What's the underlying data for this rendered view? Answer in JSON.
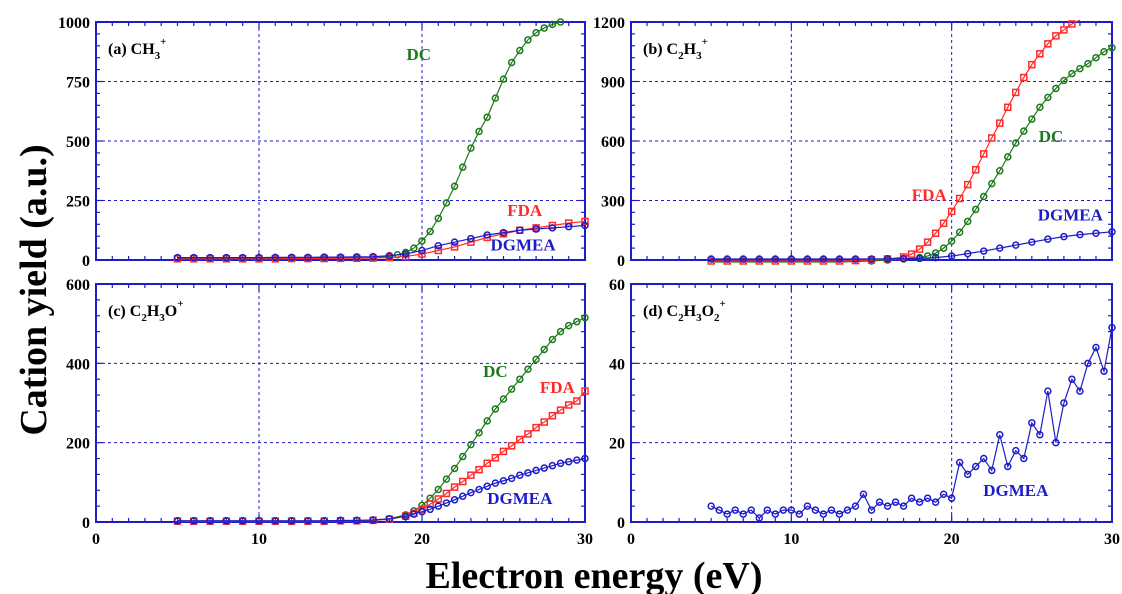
{
  "figure": {
    "ylabel": "Cation yield (a.u.)",
    "xlabel": "Electron energy (eV)"
  },
  "colors": {
    "DC": "#1a7a1a",
    "FDA": "#ff2a2a",
    "DGMEA": "#1c1cc8",
    "axis": "#1c1cc8",
    "grid": "#1c1cc8"
  },
  "chart_data": [
    {
      "type": "scatter",
      "panel_label": "(a) CH",
      "panel_sub": "3",
      "panel_sup": "+",
      "xlim": [
        0,
        30
      ],
      "ylim": [
        0,
        1000
      ],
      "xticks": [
        0,
        10,
        20,
        30
      ],
      "yticks": [
        0,
        250,
        500,
        750,
        1000
      ],
      "grid": true,
      "series": [
        {
          "name": "DC",
          "label_pos": [
            19.8,
            840
          ],
          "x": [
            5,
            6,
            7,
            8,
            9,
            10,
            11,
            12,
            13,
            14,
            15,
            16,
            17,
            18,
            18.5,
            19,
            19.5,
            20,
            20.5,
            21,
            21.5,
            22,
            22.5,
            23,
            23.5,
            24,
            24.5,
            25,
            25.5,
            26,
            26.5,
            27,
            27.5,
            28,
            28.5
          ],
          "y": [
            8,
            8,
            8,
            8,
            8,
            8,
            8,
            9,
            9,
            9,
            10,
            10,
            12,
            15,
            22,
            32,
            50,
            80,
            120,
            175,
            240,
            310,
            390,
            470,
            540,
            600,
            680,
            760,
            830,
            880,
            925,
            955,
            975,
            990,
            1000
          ]
        },
        {
          "name": "FDA",
          "label_pos": [
            26.3,
            185
          ],
          "x": [
            5,
            6,
            7,
            8,
            9,
            10,
            11,
            12,
            13,
            14,
            15,
            16,
            17,
            18,
            19,
            20,
            21,
            22,
            23,
            24,
            25,
            26,
            27,
            28,
            29,
            30
          ],
          "y": [
            5,
            5,
            5,
            5,
            5,
            5,
            5,
            6,
            6,
            6,
            7,
            7,
            8,
            10,
            15,
            25,
            40,
            55,
            75,
            95,
            110,
            125,
            135,
            145,
            155,
            162
          ]
        },
        {
          "name": "DGMEA",
          "label_pos": [
            26.2,
            40
          ],
          "x": [
            5,
            6,
            7,
            8,
            9,
            10,
            11,
            12,
            13,
            14,
            15,
            16,
            17,
            18,
            19,
            20,
            21,
            22,
            23,
            24,
            25,
            26,
            27,
            28,
            29,
            30
          ],
          "y": [
            10,
            10,
            10,
            10,
            10,
            10,
            11,
            11,
            11,
            12,
            12,
            13,
            14,
            18,
            25,
            40,
            60,
            75,
            90,
            105,
            115,
            125,
            130,
            135,
            140,
            145
          ]
        }
      ]
    },
    {
      "type": "scatter",
      "panel_label": "(b) C",
      "panel_sub": "2",
      "panel_mid": "H",
      "panel_sub2": "3",
      "panel_sup": "+",
      "xlim": [
        0,
        30
      ],
      "ylim": [
        0,
        1200
      ],
      "xticks": [
        0,
        10,
        20,
        30
      ],
      "yticks": [
        0,
        300,
        600,
        900,
        1200
      ],
      "grid": true,
      "series": [
        {
          "name": "DC",
          "label_pos": [
            26.2,
            595
          ],
          "x": [
            5,
            6,
            7,
            8,
            9,
            10,
            11,
            12,
            13,
            14,
            15,
            16,
            17,
            18,
            18.5,
            19,
            19.5,
            20,
            20.5,
            21,
            21.5,
            22,
            22.5,
            23,
            23.5,
            24,
            24.5,
            25,
            25.5,
            26,
            26.5,
            27,
            27.5,
            28,
            28.5,
            29,
            29.5,
            30
          ],
          "y": [
            -10,
            -10,
            -10,
            -10,
            -10,
            -10,
            -10,
            -10,
            -10,
            -8,
            -5,
            0,
            5,
            12,
            20,
            35,
            60,
            95,
            140,
            195,
            255,
            320,
            385,
            450,
            520,
            590,
            650,
            710,
            770,
            820,
            865,
            905,
            940,
            965,
            990,
            1020,
            1050,
            1070
          ]
        },
        {
          "name": "FDA",
          "label_pos": [
            18.6,
            300
          ],
          "x": [
            5,
            6,
            7,
            8,
            9,
            10,
            11,
            12,
            13,
            14,
            15,
            16,
            17,
            17.5,
            18,
            18.5,
            19,
            19.5,
            20,
            20.5,
            21,
            21.5,
            22,
            22.5,
            23,
            23.5,
            24,
            24.5,
            25,
            25.5,
            26,
            26.5,
            27,
            27.5,
            28
          ],
          "y": [
            -5,
            -5,
            -5,
            -5,
            -5,
            -5,
            -5,
            -5,
            -5,
            -3,
            0,
            5,
            15,
            30,
            55,
            90,
            135,
            185,
            245,
            310,
            380,
            455,
            535,
            615,
            690,
            770,
            845,
            920,
            985,
            1040,
            1090,
            1130,
            1160,
            1190,
            1210
          ]
        },
        {
          "name": "DGMEA",
          "label_pos": [
            27.4,
            200
          ],
          "x": [
            5,
            6,
            7,
            8,
            9,
            10,
            11,
            12,
            13,
            14,
            15,
            16,
            17,
            18,
            19,
            20,
            21,
            22,
            23,
            24,
            25,
            26,
            27,
            28,
            29,
            30
          ],
          "y": [
            5,
            5,
            5,
            5,
            5,
            5,
            5,
            5,
            5,
            5,
            5,
            6,
            7,
            8,
            12,
            20,
            32,
            45,
            60,
            75,
            90,
            105,
            118,
            128,
            135,
            142
          ]
        }
      ]
    },
    {
      "type": "scatter",
      "panel_label": "(c) C",
      "panel_sub": "2",
      "panel_mid": "H",
      "panel_sub2": "3",
      "panel_tail": "O",
      "panel_sup": "+",
      "xlim": [
        0,
        30
      ],
      "ylim": [
        0,
        600
      ],
      "xticks": [
        0,
        10,
        20,
        30
      ],
      "yticks": [
        0,
        200,
        400,
        600
      ],
      "grid": true,
      "series": [
        {
          "name": "DC",
          "label_pos": [
            24.5,
            365
          ],
          "x": [
            5,
            6,
            7,
            8,
            9,
            10,
            11,
            12,
            13,
            14,
            15,
            16,
            17,
            18,
            19,
            19.5,
            20,
            20.5,
            21,
            21.5,
            22,
            22.5,
            23,
            23.5,
            24,
            24.5,
            25,
            25.5,
            26,
            26.5,
            27,
            27.5,
            28,
            28.5,
            29,
            29.5,
            30
          ],
          "y": [
            3,
            3,
            3,
            3,
            3,
            3,
            3,
            3,
            3,
            3,
            4,
            4,
            5,
            8,
            18,
            28,
            42,
            60,
            82,
            108,
            135,
            165,
            195,
            225,
            255,
            285,
            310,
            335,
            360,
            385,
            410,
            435,
            460,
            480,
            495,
            505,
            515
          ]
        },
        {
          "name": "FDA",
          "label_pos": [
            28.3,
            325
          ],
          "x": [
            5,
            6,
            7,
            8,
            9,
            10,
            11,
            12,
            13,
            14,
            15,
            16,
            17,
            18,
            19,
            19.5,
            20,
            20.5,
            21,
            21.5,
            22,
            22.5,
            23,
            23.5,
            24,
            24.5,
            25,
            25.5,
            26,
            26.5,
            27,
            27.5,
            28,
            28.5,
            29,
            29.5,
            30
          ],
          "y": [
            2,
            2,
            2,
            2,
            2,
            2,
            2,
            2,
            2,
            2,
            3,
            3,
            4,
            7,
            15,
            22,
            32,
            45,
            58,
            72,
            88,
            102,
            118,
            132,
            148,
            162,
            178,
            192,
            208,
            222,
            238,
            252,
            268,
            282,
            295,
            305,
            330
          ]
        },
        {
          "name": "DGMEA",
          "label_pos": [
            26.0,
            45
          ],
          "x": [
            5,
            6,
            7,
            8,
            9,
            10,
            11,
            12,
            13,
            14,
            15,
            16,
            17,
            18,
            19,
            19.5,
            20,
            20.5,
            21,
            21.5,
            22,
            22.5,
            23,
            23.5,
            24,
            24.5,
            25,
            25.5,
            26,
            26.5,
            27,
            27.5,
            28,
            28.5,
            29,
            29.5,
            30
          ],
          "y": [
            3,
            3,
            3,
            3,
            3,
            3,
            3,
            3,
            3,
            3,
            4,
            4,
            5,
            8,
            14,
            20,
            26,
            32,
            40,
            48,
            56,
            65,
            74,
            82,
            90,
            98,
            104,
            110,
            118,
            124,
            130,
            136,
            142,
            148,
            152,
            156,
            160
          ]
        }
      ]
    },
    {
      "type": "line",
      "panel_label": "(d) C",
      "panel_sub": "2",
      "panel_mid": "H",
      "panel_sub2": "3",
      "panel_tail": "O",
      "panel_sub3": "2",
      "panel_sup": "+",
      "xlim": [
        0,
        30
      ],
      "ylim": [
        0,
        60
      ],
      "xticks": [
        0,
        10,
        20,
        30
      ],
      "yticks": [
        0,
        20,
        40,
        60
      ],
      "grid": true,
      "series": [
        {
          "name": "DGMEA",
          "label_pos": [
            24.0,
            6.5
          ],
          "x": [
            5,
            5.5,
            6,
            6.5,
            7,
            7.5,
            8,
            8.5,
            9,
            9.5,
            10,
            10.5,
            11,
            11.5,
            12,
            12.5,
            13,
            13.5,
            14,
            14.5,
            15,
            15.5,
            16,
            16.5,
            17,
            17.5,
            18,
            18.5,
            19,
            19.5,
            20,
            20.5,
            21,
            21.5,
            22,
            22.5,
            23,
            23.5,
            24,
            24.5,
            25,
            25.5,
            26,
            26.5,
            27,
            27.5,
            28,
            28.5,
            29,
            29.5,
            30
          ],
          "y": [
            4,
            3,
            2,
            3,
            2,
            3,
            1,
            3,
            2,
            3,
            3,
            2,
            4,
            3,
            2,
            3,
            2,
            3,
            4,
            7,
            3,
            5,
            4,
            5,
            4,
            6,
            5,
            6,
            5,
            7,
            6,
            15,
            12,
            14,
            16,
            13,
            22,
            14,
            18,
            16,
            25,
            22,
            33,
            20,
            30,
            36,
            33,
            40,
            44,
            38,
            49
          ]
        }
      ]
    }
  ]
}
